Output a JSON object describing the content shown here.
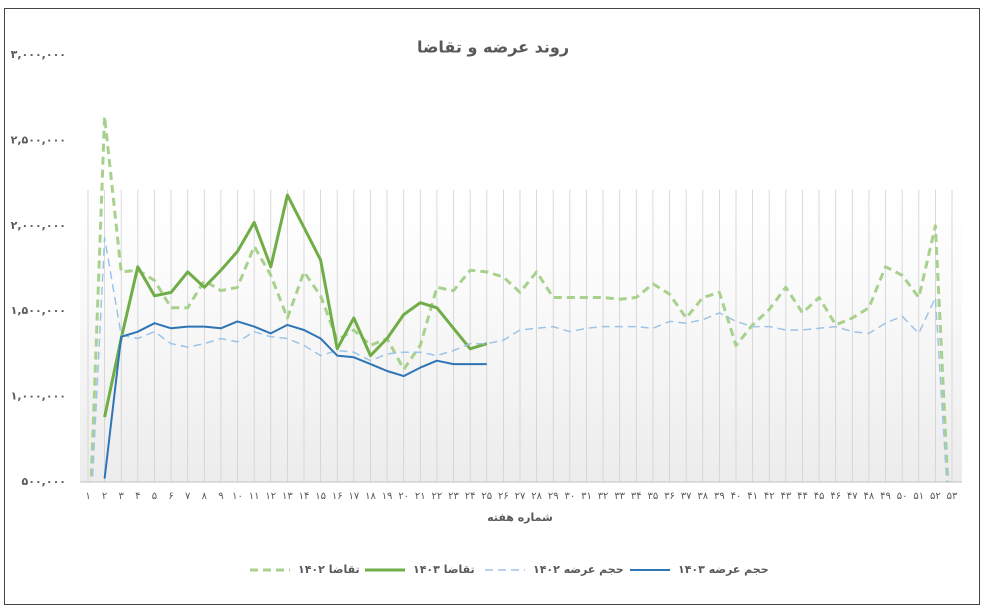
{
  "chart_data": {
    "type": "line",
    "title": "روند عرضه و تقاضا",
    "x_label": "شماره هفته",
    "categories": [
      "۱",
      "۲",
      "۳",
      "۴",
      "۵",
      "۶",
      "۷",
      "۸",
      "۹",
      "۱۰",
      "۱۱",
      "۱۲",
      "۱۳",
      "۱۴",
      "۱۵",
      "۱۶",
      "۱۷",
      "۱۸",
      "۱۹",
      "۲۰",
      "۲۱",
      "۲۲",
      "۲۳",
      "۲۴",
      "۲۵",
      "۲۶",
      "۲۷",
      "۲۸",
      "۲۹",
      "۳۰",
      "۳۱",
      "۳۲",
      "۳۳",
      "۳۴",
      "۳۵",
      "۳۶",
      "۳۷",
      "۳۸",
      "۳۹",
      "۴۰",
      "۴۱",
      "۴۲",
      "۴۳",
      "۴۴",
      "۴۵",
      "۴۶",
      "۴۷",
      "۴۸",
      "۴۹",
      "۵۰",
      "۵۱",
      "۵۲",
      "۵۳"
    ],
    "ylim": [
      500000,
      3000000
    ],
    "yticks": [
      {
        "value": 500000,
        "label": "۵۰۰,۰۰۰"
      },
      {
        "value": 1000000,
        "label": "۱,۰۰۰,۰۰۰"
      },
      {
        "value": 1500000,
        "label": "۱,۵۰۰,۰۰۰"
      },
      {
        "value": 2000000,
        "label": "۲,۰۰۰,۰۰۰"
      },
      {
        "value": 2500000,
        "label": "۲,۵۰۰,۰۰۰"
      },
      {
        "value": 3000000,
        "label": "۳,۰۰۰,۰۰۰"
      }
    ],
    "legend": "bottom",
    "series": [
      {
        "name": "تقاضا ۱۴۰۲",
        "color": "#a9d18e",
        "dashed": true,
        "values": [
          0,
          2640000,
          1730000,
          1740000,
          1680000,
          1520000,
          1520000,
          1680000,
          1620000,
          1640000,
          1880000,
          1710000,
          1460000,
          1730000,
          1590000,
          1330000,
          1390000,
          1300000,
          1340000,
          1160000,
          1300000,
          1640000,
          1620000,
          1740000,
          1730000,
          1700000,
          1610000,
          1730000,
          1580000,
          1580000,
          1580000,
          1580000,
          1570000,
          1580000,
          1660000,
          1600000,
          1460000,
          1580000,
          1610000,
          1300000,
          1420000,
          1510000,
          1640000,
          1490000,
          1580000,
          1420000,
          1460000,
          1520000,
          1760000,
          1710000,
          1580000,
          2000000,
          0
        ]
      },
      {
        "name": "تقاضا ۱۴۰۳",
        "color": "#70ad47",
        "dashed": false,
        "values": [
          null,
          880000,
          1340000,
          1760000,
          1590000,
          1610000,
          1730000,
          1640000,
          1740000,
          1850000,
          2020000,
          1760000,
          2180000,
          1990000,
          1800000,
          1280000,
          1460000,
          1240000,
          1340000,
          1480000,
          1550000,
          1520000,
          1400000,
          1280000,
          1310000,
          null,
          null,
          null,
          null,
          null,
          null,
          null,
          null,
          null,
          null,
          null,
          null,
          null,
          null,
          null,
          null,
          null,
          null,
          null,
          null,
          null,
          null,
          null,
          null,
          null,
          null,
          null,
          null
        ]
      },
      {
        "name": "حجم عرضه ۱۴۰۲",
        "color": "#9dc3e6",
        "dashed": true,
        "values": [
          0,
          1930000,
          1360000,
          1340000,
          1380000,
          1310000,
          1290000,
          1310000,
          1340000,
          1320000,
          1380000,
          1350000,
          1340000,
          1300000,
          1240000,
          1270000,
          1260000,
          1210000,
          1250000,
          1260000,
          1260000,
          1240000,
          1270000,
          1310000,
          1310000,
          1330000,
          1390000,
          1400000,
          1410000,
          1380000,
          1400000,
          1410000,
          1410000,
          1410000,
          1400000,
          1440000,
          1430000,
          1450000,
          1490000,
          1440000,
          1410000,
          1410000,
          1390000,
          1390000,
          1400000,
          1410000,
          1380000,
          1370000,
          1430000,
          1470000,
          1370000,
          1580000,
          0
        ]
      },
      {
        "name": "حجم عرضه ۱۴۰۳",
        "color": "#2e75b6",
        "dashed": false,
        "values": [
          null,
          520000,
          1350000,
          1380000,
          1430000,
          1400000,
          1410000,
          1410000,
          1400000,
          1440000,
          1410000,
          1370000,
          1420000,
          1390000,
          1340000,
          1240000,
          1230000,
          1190000,
          1150000,
          1120000,
          1170000,
          1210000,
          1190000,
          1190000,
          1190000,
          null,
          null,
          null,
          null,
          null,
          null,
          null,
          null,
          null,
          null,
          null,
          null,
          null,
          null,
          null,
          null,
          null,
          null,
          null,
          null,
          null,
          null,
          null,
          null,
          null,
          null,
          null,
          null
        ]
      }
    ]
  }
}
